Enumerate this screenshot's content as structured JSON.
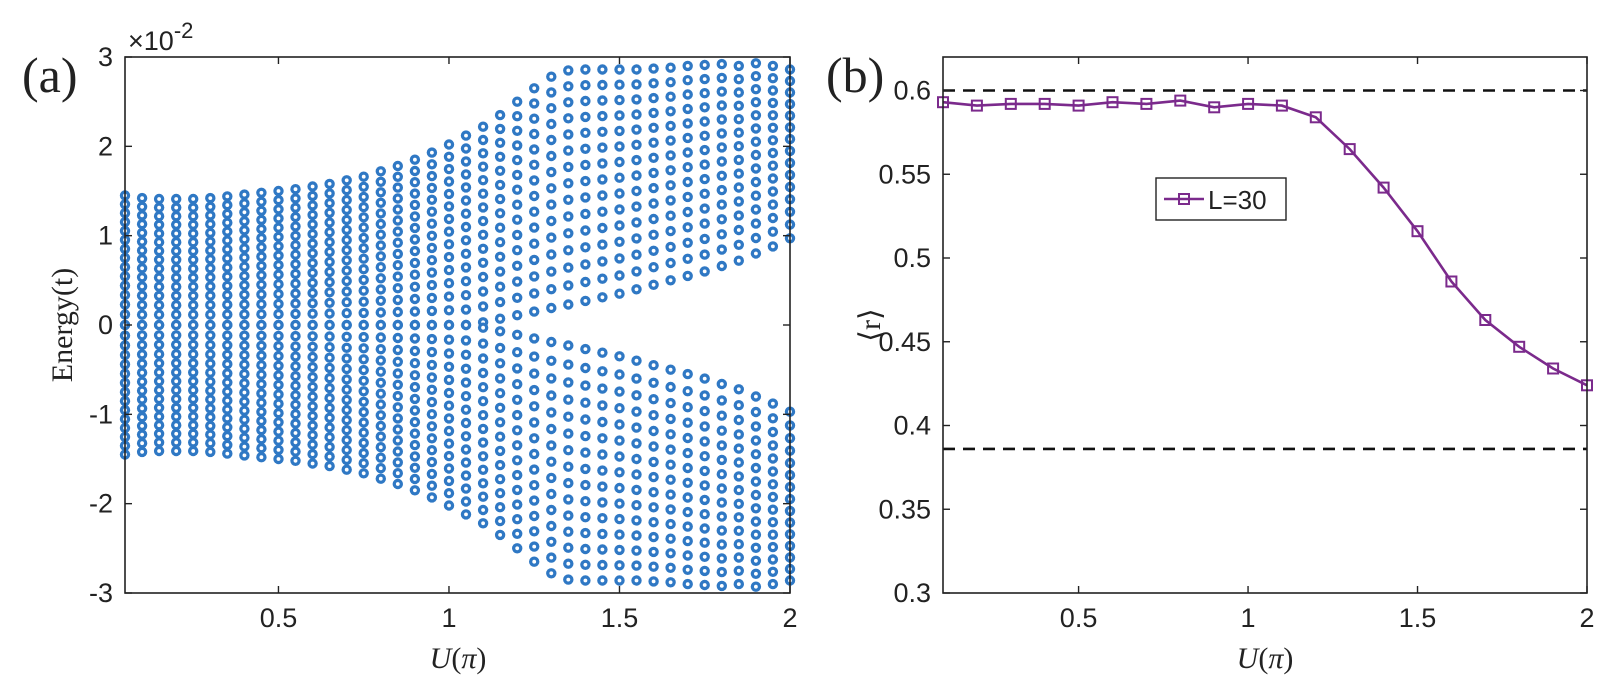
{
  "chart_data": [
    {
      "panel": "(a)",
      "type": "scatter",
      "xlabel_var": "U",
      "xlabel_unit": "π",
      "ylabel": "Energy(t)",
      "yscale_label": "×10",
      "yscale_exponent": "-2",
      "xlim": [
        0.05,
        2.0
      ],
      "ylim": [
        -3,
        3
      ],
      "xticks": [
        0.5,
        1,
        1.5,
        2
      ],
      "xtick_labels": [
        "0.5",
        "1",
        "1.5",
        "2"
      ],
      "yticks": [
        -3,
        -2,
        -1,
        0,
        1,
        2,
        3
      ],
      "ytick_labels": [
        "-3",
        "-2",
        "-1",
        "0",
        "1",
        "2",
        "3"
      ],
      "x": [
        0.05,
        0.1,
        0.15,
        0.2,
        0.25,
        0.3,
        0.35,
        0.4,
        0.45,
        0.5,
        0.55,
        0.6,
        0.65,
        0.7,
        0.75,
        0.8,
        0.85,
        0.9,
        0.95,
        1.0,
        1.05,
        1.1,
        1.15,
        1.2,
        1.25,
        1.3,
        1.35,
        1.4,
        1.45,
        1.5,
        1.55,
        1.6,
        1.65,
        1.7,
        1.75,
        1.8,
        1.85,
        1.9,
        1.95,
        2.0
      ],
      "band_edge_upper": [
        1.45,
        1.42,
        1.41,
        1.41,
        1.41,
        1.42,
        1.44,
        1.46,
        1.48,
        1.5,
        1.52,
        1.55,
        1.58,
        1.62,
        1.66,
        1.72,
        1.78,
        1.85,
        1.93,
        2.02,
        2.12,
        2.22,
        2.35,
        2.5,
        2.65,
        2.78,
        2.85,
        2.86,
        2.86,
        2.86,
        2.86,
        2.87,
        2.88,
        2.9,
        2.91,
        2.92,
        2.9,
        2.93,
        2.9,
        2.86
      ],
      "inner_gap_edge": [
        0.0,
        0.0,
        0.0,
        0.0,
        0.0,
        0.0,
        0.0,
        0.0,
        0.0,
        0.0,
        0.0,
        0.0,
        0.0,
        0.0,
        0.0,
        0.0,
        0.0,
        0.0,
        0.0,
        0.0,
        0.0,
        0.03,
        0.07,
        0.11,
        0.15,
        0.19,
        0.23,
        0.27,
        0.31,
        0.35,
        0.4,
        0.45,
        0.5,
        0.55,
        0.6,
        0.66,
        0.72,
        0.8,
        0.88,
        0.97
      ],
      "levels_per_side": 15,
      "marker": "gear-dot",
      "color": "#2f78c4",
      "series_note": "symmetric spectrum: levels spread between inner_gap_edge and band_edge_upper and mirrored to negative energies"
    },
    {
      "panel": "(b)",
      "type": "line",
      "xlabel_var": "U",
      "xlabel_unit": "π",
      "ylabel": "⟨r⟩",
      "xlim": [
        0.1,
        2.0
      ],
      "ylim": [
        0.3,
        0.62
      ],
      "xticks": [
        0.5,
        1,
        1.5,
        2
      ],
      "xtick_labels": [
        "0.5",
        "1",
        "1.5",
        "2"
      ],
      "yticks": [
        0.3,
        0.35,
        0.4,
        0.45,
        0.5,
        0.55,
        0.6
      ],
      "ytick_labels": [
        "0.3",
        "0.35",
        "0.4",
        "0.45",
        "0.5",
        "0.55",
        "0.6"
      ],
      "series": [
        {
          "name": "L=30",
          "color": "#7b2a8c",
          "x": [
            0.1,
            0.2,
            0.3,
            0.4,
            0.5,
            0.6,
            0.7,
            0.8,
            0.9,
            1.0,
            1.1,
            1.2,
            1.3,
            1.4,
            1.5,
            1.6,
            1.7,
            1.8,
            1.9,
            2.0
          ],
          "values": [
            0.593,
            0.591,
            0.592,
            0.592,
            0.591,
            0.593,
            0.592,
            0.594,
            0.59,
            0.592,
            0.591,
            0.584,
            0.565,
            0.542,
            0.516,
            0.486,
            0.463,
            0.447,
            0.434,
            0.424
          ]
        }
      ],
      "reference_lines": [
        0.6,
        0.386
      ],
      "reference_style": "dashed",
      "legend": {
        "label": "L=30",
        "position": "upper-center"
      }
    }
  ]
}
